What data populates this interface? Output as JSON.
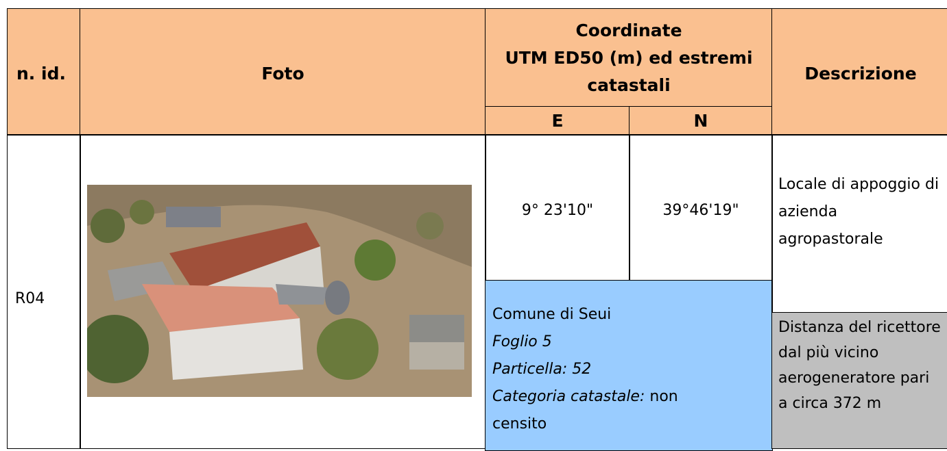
{
  "header": {
    "n_id": "n. id.",
    "foto": "Foto",
    "coordinate": [
      "Coordinate",
      "UTM ED50 (m) ed estremi",
      "catastali"
    ],
    "descrizione": "Descrizione",
    "e": "E",
    "n": "N"
  },
  "row": {
    "id": "R04",
    "e": "9° 23'10\"",
    "n": "39°46'19\"",
    "comune": "Comune di Seui",
    "foglio": "Foglio 5",
    "particella": "Particella: 52",
    "categoria_label": "Categoria catastale:",
    "categoria_value": "non censito",
    "descrizione": "Locale di appoggio di azienda agropastorale",
    "distanza": "Distanza del ricettore dal più vicino aerogeneratore pari a circa 372 m"
  }
}
